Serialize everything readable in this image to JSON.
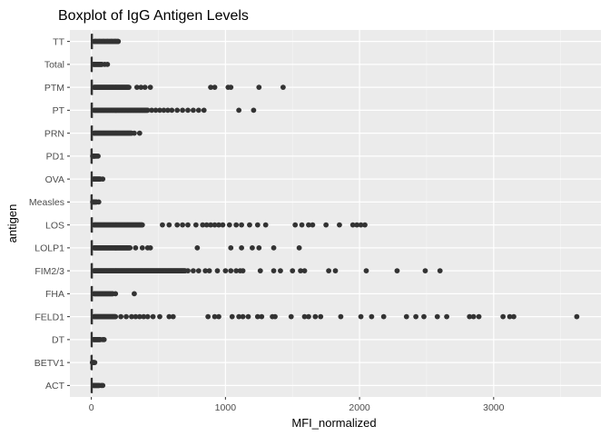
{
  "chart_data": {
    "type": "boxplot",
    "orientation": "horizontal",
    "title": "Boxplot of IgG Antigen Levels",
    "xlabel": "MFI_normalized",
    "ylabel": "antigen",
    "xlim": [
      -160,
      3800
    ],
    "x_ticks": [
      0,
      1000,
      2000,
      3000
    ],
    "x_tick_labels": [
      "0",
      "1000",
      "2000",
      "3000"
    ],
    "grid": true,
    "legend": "none",
    "colors": {
      "panel_bg": "#ebebeb",
      "grid_major": "#ffffff",
      "point": "#333333",
      "box_line": "#333333"
    },
    "categories": [
      "TT",
      "Total",
      "PTM",
      "PT",
      "PRN",
      "PD1",
      "OVA",
      "Measles",
      "LOS",
      "LOLP1",
      "FIM2/3",
      "FHA",
      "FELD1",
      "DT",
      "BETV1",
      "ACT"
    ],
    "boxes": [
      {
        "antigen": "TT",
        "median": 3,
        "box_range": [
          0,
          8
        ],
        "whisker": [
          -2,
          20
        ]
      },
      {
        "antigen": "Total",
        "median": 2,
        "box_range": [
          0,
          6
        ],
        "whisker": [
          -2,
          15
        ]
      },
      {
        "antigen": "PTM",
        "median": 2,
        "box_range": [
          0,
          8
        ],
        "whisker": [
          -2,
          20
        ]
      },
      {
        "antigen": "PT",
        "median": 2,
        "box_range": [
          0,
          8
        ],
        "whisker": [
          -2,
          20
        ]
      },
      {
        "antigen": "PRN",
        "median": 2,
        "box_range": [
          0,
          8
        ],
        "whisker": [
          -2,
          20
        ]
      },
      {
        "antigen": "PD1",
        "median": 1,
        "box_range": [
          0,
          4
        ],
        "whisker": [
          -2,
          10
        ]
      },
      {
        "antigen": "OVA",
        "median": 2,
        "box_range": [
          0,
          6
        ],
        "whisker": [
          -2,
          15
        ]
      },
      {
        "antigen": "Measles",
        "median": 1,
        "box_range": [
          0,
          4
        ],
        "whisker": [
          -2,
          10
        ]
      },
      {
        "antigen": "LOS",
        "median": 2,
        "box_range": [
          0,
          8
        ],
        "whisker": [
          -2,
          20
        ]
      },
      {
        "antigen": "LOLP1",
        "median": 2,
        "box_range": [
          0,
          8
        ],
        "whisker": [
          -2,
          20
        ]
      },
      {
        "antigen": "FIM2/3",
        "median": 2,
        "box_range": [
          0,
          8
        ],
        "whisker": [
          -2,
          20
        ]
      },
      {
        "antigen": "FHA",
        "median": 2,
        "box_range": [
          0,
          8
        ],
        "whisker": [
          -2,
          20
        ]
      },
      {
        "antigen": "FELD1",
        "median": 2,
        "box_range": [
          0,
          8
        ],
        "whisker": [
          -2,
          20
        ]
      },
      {
        "antigen": "DT",
        "median": 2,
        "box_range": [
          0,
          6
        ],
        "whisker": [
          -2,
          15
        ]
      },
      {
        "antigen": "BETV1",
        "median": 1,
        "box_range": [
          0,
          4
        ],
        "whisker": [
          -2,
          10
        ]
      },
      {
        "antigen": "ACT",
        "median": 2,
        "box_range": [
          0,
          6
        ],
        "whisker": [
          -2,
          15
        ]
      }
    ],
    "outliers": {
      "TT": {
        "dense_range": [
          20,
          200
        ],
        "points": [
          30,
          60,
          90,
          120,
          150,
          175,
          200
        ]
      },
      "Total": {
        "dense_range": [
          15,
          80
        ],
        "points": [
          100,
          120
        ]
      },
      "PTM": {
        "dense_range": [
          20,
          280
        ],
        "points": [
          340,
          370,
          400,
          440,
          890,
          920,
          1020,
          1040,
          1250,
          1430
        ]
      },
      "PT": {
        "dense_range": [
          20,
          420
        ],
        "points": [
          450,
          480,
          510,
          540,
          570,
          600,
          640,
          680,
          720,
          760,
          800,
          840,
          1100,
          1210
        ]
      },
      "PRN": {
        "dense_range": [
          20,
          300
        ],
        "points": [
          320,
          360
        ]
      },
      "PD1": {
        "dense_range": [
          10,
          30
        ],
        "points": [
          40,
          50
        ]
      },
      "OVA": {
        "dense_range": [
          15,
          70
        ],
        "points": [
          85
        ]
      },
      "Measles": {
        "dense_range": [
          10,
          40
        ],
        "points": [
          55
        ]
      },
      "LOS": {
        "dense_range": [
          20,
          380
        ],
        "points": [
          530,
          580,
          640,
          680,
          720,
          780,
          830,
          860,
          890,
          920,
          950,
          980,
          1030,
          1080,
          1120,
          1180,
          1240,
          1300,
          1520,
          1570,
          1620,
          1650,
          1750,
          1850,
          1950,
          1980,
          2010,
          2040
        ]
      },
      "LOLP1": {
        "dense_range": [
          20,
          290
        ],
        "points": [
          330,
          380,
          420,
          440,
          790,
          1040,
          1120,
          1200,
          1250,
          1360,
          1550
        ]
      },
      "FIM2/3": {
        "dense_range": [
          20,
          700
        ],
        "points": [
          720,
          760,
          800,
          850,
          880,
          940,
          1000,
          1040,
          1080,
          1110,
          1130,
          1260,
          1360,
          1410,
          1500,
          1560,
          1590,
          1770,
          1820,
          2050,
          2280,
          2490,
          2600
        ]
      },
      "FHA": {
        "dense_range": [
          20,
          160
        ],
        "points": [
          180,
          320
        ]
      },
      "FELD1": {
        "dense_range": [
          20,
          180
        ],
        "points": [
          220,
          260,
          300,
          330,
          360,
          390,
          420,
          460,
          510,
          580,
          610,
          870,
          920,
          950,
          1050,
          1100,
          1130,
          1170,
          1240,
          1270,
          1350,
          1370,
          1490,
          1590,
          1620,
          1670,
          1710,
          1860,
          2010,
          2090,
          2180,
          2350,
          2420,
          2480,
          2580,
          2650,
          2820,
          2850,
          2890,
          3070,
          3120,
          3150,
          3620
        ]
      },
      "DT": {
        "dense_range": [
          15,
          70
        ],
        "points": [
          85,
          95
        ]
      },
      "BETV1": {
        "dense_range": [
          8,
          20
        ],
        "points": [
          25
        ]
      },
      "ACT": {
        "dense_range": [
          15,
          60
        ],
        "points": [
          75,
          85
        ]
      }
    }
  }
}
